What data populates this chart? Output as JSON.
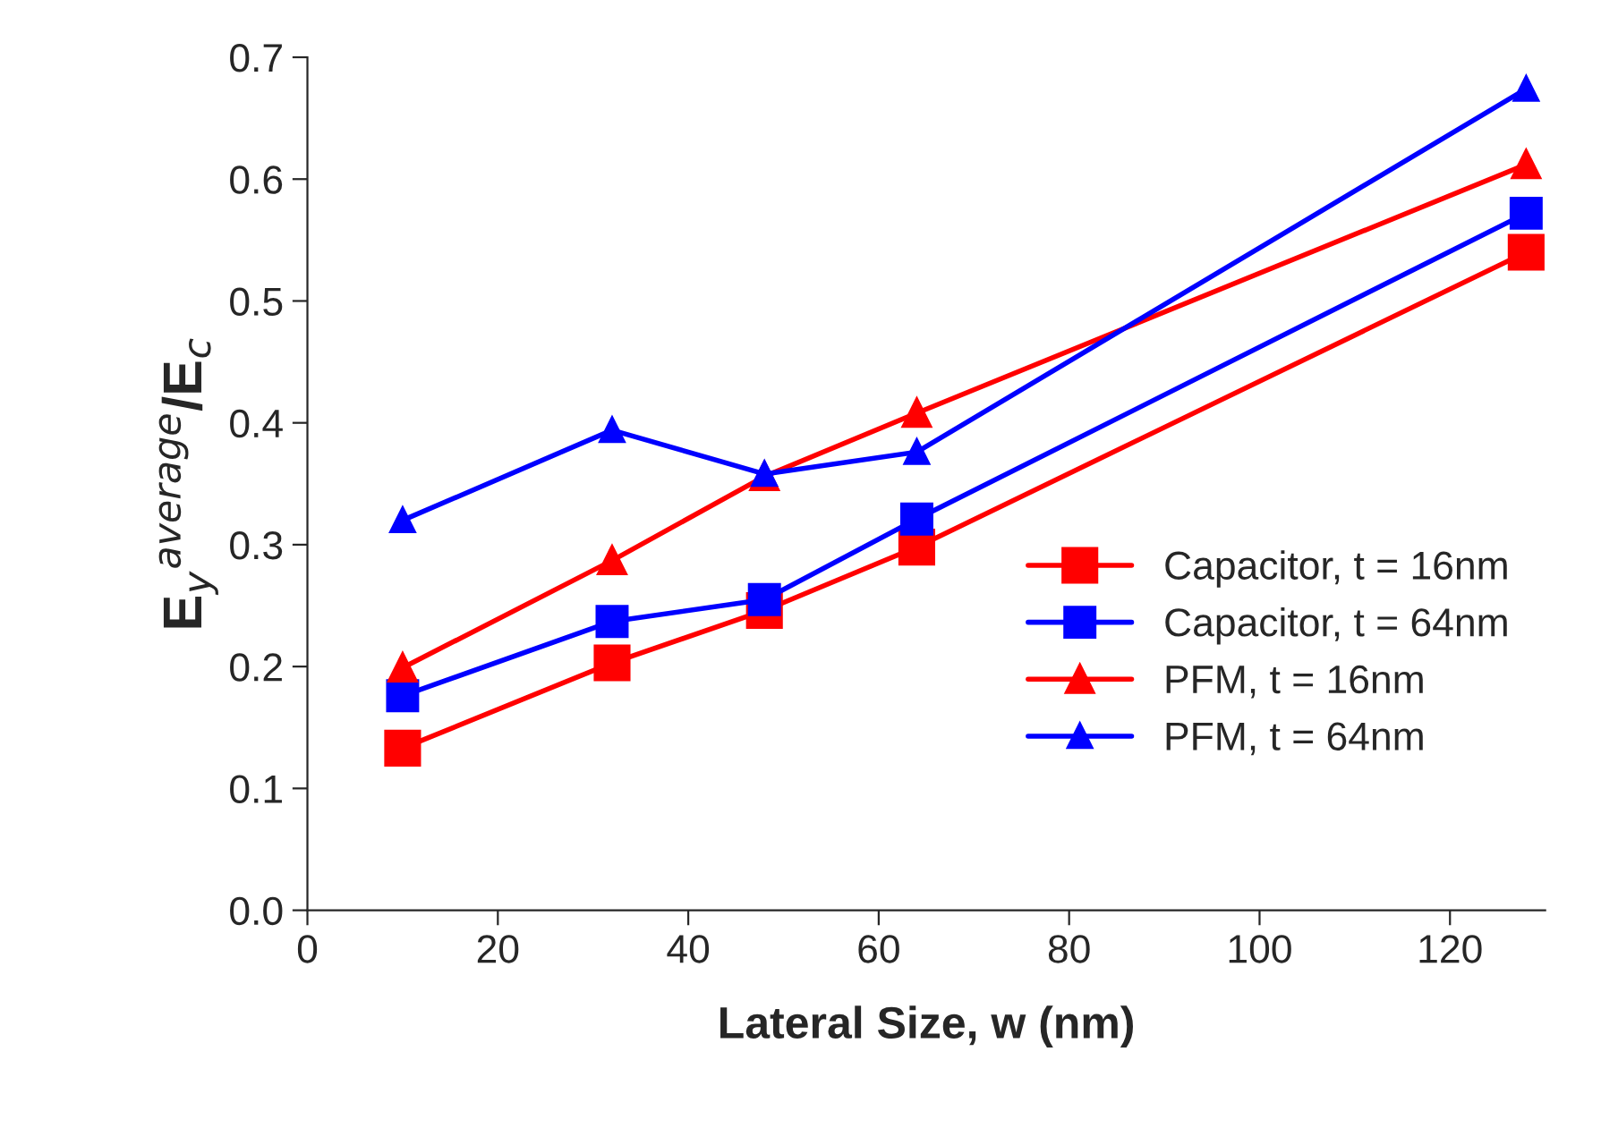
{
  "chart_data": {
    "type": "line",
    "xlabel": "Lateral Size, w (nm)",
    "ylabel": "E$_{y}$$^{average}$/E$_{c}$",
    "x": [
      10,
      32,
      48,
      64,
      128
    ],
    "series": [
      {
        "name": "Capacitor, t = 16nm",
        "color": "#ff0000",
        "marker": "square",
        "values": [
          0.133,
          0.203,
          0.246,
          0.298,
          0.54
        ]
      },
      {
        "name": "Capacitor, t = 64nm",
        "color": "#0000ff",
        "marker": "square",
        "values": [
          0.176,
          0.237,
          0.255,
          0.321,
          0.572
        ]
      },
      {
        "name": "PFM, t = 16nm",
        "color": "#ff0000",
        "marker": "triangle",
        "values": [
          0.199,
          0.287,
          0.356,
          0.408,
          0.612
        ]
      },
      {
        "name": "PFM, t = 64nm",
        "color": "#0000ff",
        "marker": "triangle",
        "values": [
          0.32,
          0.394,
          0.358,
          0.376,
          0.674
        ]
      }
    ],
    "xlim": [
      0,
      130
    ],
    "xticks": [
      0,
      20,
      40,
      60,
      80,
      100,
      120
    ],
    "ylim": [
      0,
      0.7
    ],
    "yticks": [
      {
        "value": 0,
        "label": "0.0"
      },
      0.1,
      0.2,
      0.3,
      0.4,
      0.5,
      0.6,
      0.7
    ],
    "grid": false,
    "legend": "right",
    "line_style": "solid"
  }
}
